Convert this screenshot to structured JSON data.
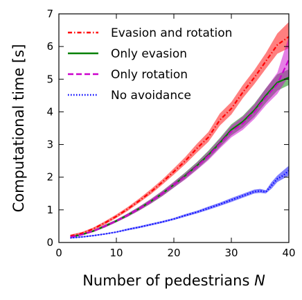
{
  "chart_data": {
    "type": "line",
    "xlabel": "Number of pedestrians",
    "xlabel_var": "N",
    "ylabel": "Computational time [s]",
    "xlim": [
      0,
      40
    ],
    "ylim": [
      0,
      7
    ],
    "xticks": [
      0,
      10,
      20,
      30,
      40
    ],
    "yticks": [
      0,
      1,
      2,
      3,
      4,
      5,
      6,
      7
    ],
    "grid": false,
    "legend_position": "top-left",
    "series": [
      {
        "name": "Evasion and rotation",
        "color": "#ff0000",
        "style": "dashdot",
        "x": [
          2,
          4,
          6,
          8,
          10,
          12,
          14,
          16,
          18,
          20,
          22,
          24,
          26,
          28,
          30,
          32,
          34,
          36,
          38,
          40
        ],
        "y": [
          0.2,
          0.28,
          0.42,
          0.6,
          0.8,
          1.03,
          1.28,
          1.55,
          1.85,
          2.17,
          2.5,
          2.88,
          3.22,
          3.75,
          4.1,
          4.6,
          5.05,
          5.55,
          6.05,
          6.3
        ],
        "low": [
          0.17,
          0.25,
          0.38,
          0.55,
          0.75,
          0.97,
          1.22,
          1.48,
          1.77,
          2.08,
          2.4,
          2.75,
          3.08,
          3.58,
          3.92,
          4.42,
          4.85,
          5.32,
          5.78,
          5.95
        ],
        "high": [
          0.24,
          0.32,
          0.46,
          0.65,
          0.86,
          1.09,
          1.35,
          1.63,
          1.93,
          2.27,
          2.62,
          3.02,
          3.38,
          3.95,
          4.3,
          4.82,
          5.28,
          5.8,
          6.4,
          6.75
        ]
      },
      {
        "name": "Only evasion",
        "color": "#008000",
        "style": "solid",
        "x": [
          2,
          4,
          6,
          8,
          10,
          12,
          14,
          16,
          18,
          20,
          22,
          24,
          26,
          28,
          30,
          32,
          34,
          36,
          38,
          40
        ],
        "y": [
          0.17,
          0.24,
          0.35,
          0.5,
          0.66,
          0.84,
          1.04,
          1.26,
          1.5,
          1.77,
          2.05,
          2.35,
          2.68,
          3.05,
          3.45,
          3.7,
          4.05,
          4.5,
          4.9,
          5.05
        ],
        "low": [
          0.15,
          0.22,
          0.32,
          0.46,
          0.62,
          0.79,
          0.98,
          1.19,
          1.42,
          1.68,
          1.95,
          2.24,
          2.55,
          2.92,
          3.28,
          3.52,
          3.85,
          4.28,
          4.65,
          4.82
        ],
        "high": [
          0.2,
          0.27,
          0.38,
          0.54,
          0.7,
          0.89,
          1.1,
          1.33,
          1.58,
          1.86,
          2.15,
          2.46,
          2.81,
          3.2,
          3.62,
          3.88,
          4.25,
          4.72,
          5.15,
          5.3
        ]
      },
      {
        "name": "Only rotation",
        "color": "#cc00cc",
        "style": "dashed",
        "x": [
          2,
          4,
          6,
          8,
          10,
          12,
          14,
          16,
          18,
          20,
          22,
          24,
          26,
          28,
          30,
          32,
          34,
          36,
          38,
          40
        ],
        "y": [
          0.17,
          0.24,
          0.35,
          0.5,
          0.66,
          0.84,
          1.04,
          1.26,
          1.5,
          1.77,
          2.03,
          2.33,
          2.65,
          3.02,
          3.4,
          3.65,
          4.0,
          4.45,
          4.85,
          5.6
        ],
        "low": [
          0.15,
          0.22,
          0.32,
          0.46,
          0.62,
          0.79,
          0.98,
          1.19,
          1.42,
          1.68,
          1.93,
          2.22,
          2.52,
          2.88,
          3.22,
          3.45,
          3.78,
          4.2,
          4.55,
          5.1
        ],
        "high": [
          0.2,
          0.27,
          0.38,
          0.54,
          0.7,
          0.89,
          1.1,
          1.33,
          1.58,
          1.86,
          2.13,
          2.44,
          2.78,
          3.17,
          3.58,
          3.85,
          4.22,
          4.72,
          5.2,
          6.3
        ]
      },
      {
        "name": "No avoidance",
        "color": "#0000ff",
        "style": "dotted",
        "x": [
          2,
          4,
          6,
          8,
          10,
          12,
          14,
          16,
          18,
          20,
          22,
          24,
          26,
          28,
          30,
          32,
          34,
          35,
          36,
          37,
          38,
          39,
          40
        ],
        "y": [
          0.14,
          0.17,
          0.21,
          0.26,
          0.32,
          0.4,
          0.47,
          0.55,
          0.63,
          0.72,
          0.83,
          0.93,
          1.05,
          1.17,
          1.3,
          1.43,
          1.56,
          1.58,
          1.55,
          1.75,
          1.95,
          2.05,
          2.2
        ],
        "low": [
          0.12,
          0.15,
          0.19,
          0.24,
          0.3,
          0.37,
          0.44,
          0.52,
          0.6,
          0.69,
          0.79,
          0.89,
          1.0,
          1.12,
          1.24,
          1.37,
          1.5,
          1.52,
          1.5,
          1.65,
          1.85,
          1.95,
          2.05
        ],
        "high": [
          0.16,
          0.19,
          0.23,
          0.28,
          0.34,
          0.43,
          0.5,
          0.58,
          0.66,
          0.75,
          0.87,
          0.97,
          1.1,
          1.22,
          1.36,
          1.49,
          1.62,
          1.64,
          1.6,
          1.85,
          2.05,
          2.2,
          2.35
        ]
      }
    ]
  }
}
